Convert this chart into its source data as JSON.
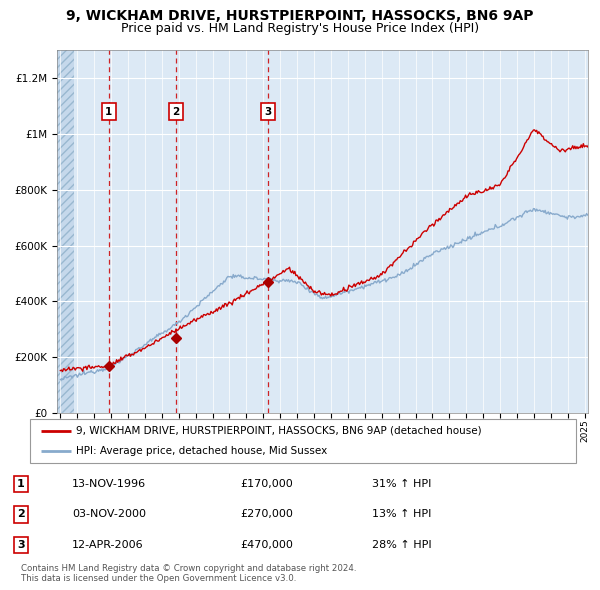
{
  "title": "9, WICKHAM DRIVE, HURSTPIERPOINT, HASSOCKS, BN6 9AP",
  "subtitle": "Price paid vs. HM Land Registry's House Price Index (HPI)",
  "title_fontsize": 10,
  "subtitle_fontsize": 9,
  "ylim": [
    0,
    1300000
  ],
  "yticks": [
    0,
    200000,
    400000,
    600000,
    800000,
    1000000,
    1200000
  ],
  "ytick_labels": [
    "£0",
    "£200K",
    "£400K",
    "£600K",
    "£800K",
    "£1M",
    "£1.2M"
  ],
  "plot_bg_color": "#dce9f5",
  "grid_color": "#ffffff",
  "red_line_color": "#cc0000",
  "blue_line_color": "#88aacc",
  "marker_color": "#aa0000",
  "dashed_line_color": "#cc0000",
  "sale_points": [
    {
      "year": 1996.87,
      "price": 170000,
      "label": "1"
    },
    {
      "year": 2000.84,
      "price": 270000,
      "label": "2"
    },
    {
      "year": 2006.28,
      "price": 470000,
      "label": "3"
    }
  ],
  "xmin": 1993.8,
  "xmax": 2025.2,
  "legend_line1": "9, WICKHAM DRIVE, HURSTPIERPOINT, HASSOCKS, BN6 9AP (detached house)",
  "legend_line2": "HPI: Average price, detached house, Mid Sussex",
  "table_data": [
    {
      "num": "1",
      "date": "13-NOV-1996",
      "price": "£170,000",
      "hpi": "31% ↑ HPI"
    },
    {
      "num": "2",
      "date": "03-NOV-2000",
      "price": "£270,000",
      "hpi": "13% ↑ HPI"
    },
    {
      "num": "3",
      "date": "12-APR-2006",
      "price": "£470,000",
      "hpi": "28% ↑ HPI"
    }
  ],
  "footer": "Contains HM Land Registry data © Crown copyright and database right 2024.\nThis data is licensed under the Open Government Licence v3.0."
}
